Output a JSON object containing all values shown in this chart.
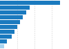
{
  "values": [
    86.5,
    43.0,
    38.0,
    33.0,
    28.5,
    25.0,
    21.0,
    17.0,
    10.0,
    5.5
  ],
  "bar_color": "#1a7abf",
  "last_bar_color": "#a8d4f0",
  "background_color": "#ffffff",
  "grid_color": "#cccccc",
  "xlim": [
    0,
    100
  ],
  "figsize": [
    1.0,
    0.71
  ],
  "dpi": 100
}
